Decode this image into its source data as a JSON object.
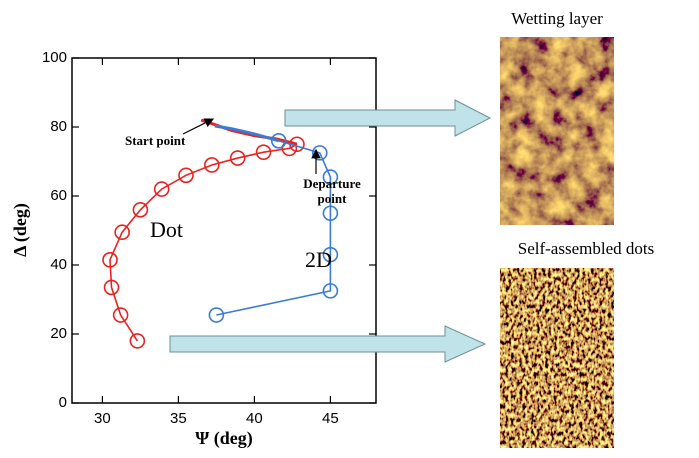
{
  "chart_data": {
    "type": "line",
    "xlabel": "Ψ (deg)",
    "ylabel": "Δ (deg)",
    "xlim": [
      28,
      48
    ],
    "xticks": [
      30,
      35,
      40,
      45
    ],
    "ylim": [
      0,
      100
    ],
    "yticks": [
      0,
      20,
      40,
      60,
      80,
      100
    ],
    "series": [
      {
        "name": "Dot",
        "color": "#e8231f",
        "marker": "circle",
        "x": [
          32.3,
          31.2,
          30.6,
          30.5,
          31.3,
          32.5,
          33.9,
          35.5,
          37.2,
          38.9,
          40.6,
          42.3,
          42.8
        ],
        "y": [
          18,
          25.5,
          33.5,
          41.5,
          49.5,
          56,
          62,
          66,
          69,
          71,
          72.7,
          73.8,
          75
        ]
      },
      {
        "color": "#e8231f",
        "x": [
          42.8,
          41.5,
          40,
          38.5,
          37.2,
          36.5
        ],
        "y": [
          75,
          76.5,
          77.5,
          79,
          81,
          82
        ]
      },
      {
        "name": "2D",
        "color": "#3a7bd5",
        "marker": "circle",
        "x": [
          37.5,
          45,
          45,
          45,
          45,
          44.3,
          41.6
        ],
        "y": [
          25.5,
          32.5,
          43,
          55,
          65.5,
          72.5,
          76
        ]
      },
      {
        "color": "#3a7bd5",
        "x": [
          41.6,
          40,
          38.5,
          37.4
        ],
        "y": [
          76,
          78,
          79.5,
          80.3
        ]
      }
    ],
    "annotations": {
      "start": "Start point",
      "departure": [
        "Departure",
        "point"
      ]
    },
    "panels": [
      {
        "title": "Wetting layer"
      },
      {
        "title": "Self-assembled dots"
      }
    ]
  }
}
